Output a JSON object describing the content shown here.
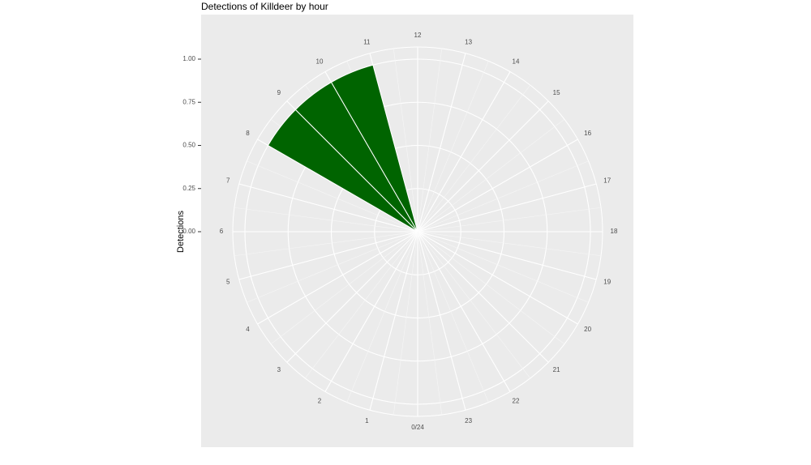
{
  "chart_data": {
    "type": "polar-bar",
    "title": "Detections of Killdeer by hour",
    "ylabel": "Detections",
    "x": [
      8.5,
      9.5,
      10.5
    ],
    "values": [
      1,
      1,
      1
    ],
    "color": "#006400",
    "xlim": [
      0,
      24
    ],
    "xticks": [
      {
        "value": 0,
        "label": "0/24"
      },
      1,
      2,
      3,
      4,
      5,
      6,
      7,
      8,
      9,
      10,
      11,
      12,
      13,
      14,
      15,
      16,
      17,
      18,
      19,
      20,
      21,
      22,
      23
    ],
    "ylim": [
      0,
      1
    ],
    "yticks": [
      {
        "value": 0,
        "label": "0.00"
      },
      {
        "value": 0.25,
        "label": "0.25"
      },
      {
        "value": 0.5,
        "label": "0.50"
      },
      {
        "value": 0.75,
        "label": "0.75"
      },
      {
        "value": 1,
        "label": "1.00"
      }
    ],
    "grid": true
  }
}
